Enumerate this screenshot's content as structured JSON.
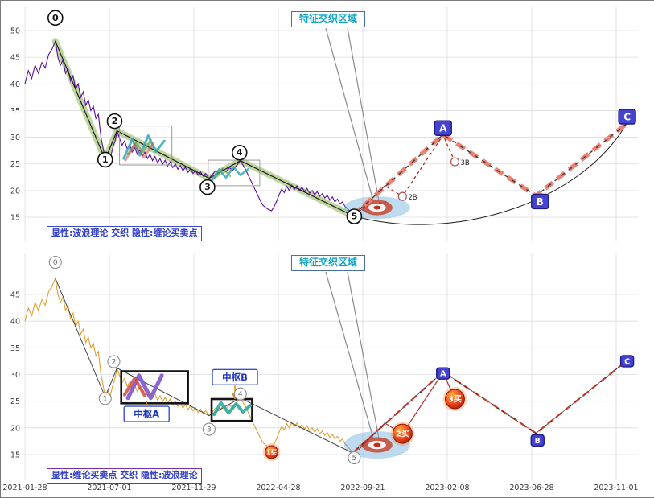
{
  "figure": {
    "background": "#ffffff",
    "border_color": "#7a7a7a",
    "grid_color": "#dcdcdc",
    "axis_text_color": "#3a3a3a"
  },
  "panels": [
    {
      "name": "wave-theory-panel",
      "legend": "显性:波浪理论 交织 隐性:缠论买卖点",
      "legend_border": "#3b4cc8",
      "legend_color": "#3340c8",
      "callout": "特征交织区域",
      "callout_color": "#12a4c4",
      "callout_border": "#4a6fa5",
      "y_ticks": [
        15,
        20,
        25,
        30,
        35,
        40,
        45,
        50
      ],
      "price_color": "#5a0f9e",
      "band_color": "rgba(170,200,128,0.75)",
      "projection_color": "#ec8272"
    },
    {
      "name": "chan-theory-panel",
      "legend": "显性:缠论买卖点 交织 隐性:波浪理论",
      "legend_border": "#7a2ea0",
      "legend_color": "#3340c8",
      "callout": "特征交织区域",
      "callout_color": "#12a4c4",
      "callout_border": "#4a6fa5",
      "y_ticks": [
        15,
        20,
        25,
        30,
        35,
        40,
        45
      ],
      "price_color": "#e0a030",
      "projection_color": "#bf3a2b"
    }
  ],
  "chart_data": {
    "type": "line",
    "x_labels": [
      "2021-01-28",
      "2021-07-01",
      "2021-11-29",
      "2022-04-28",
      "2022-09-21",
      "2023-02-08",
      "2023-06-28",
      "2023-11-01"
    ],
    "ylim_top": [
      11,
      54
    ],
    "ylim_bottom": [
      10.5,
      52.5
    ],
    "grid": true,
    "price": [
      [
        0,
        40
      ],
      [
        0.04,
        42.5
      ],
      [
        0.08,
        41
      ],
      [
        0.12,
        43.5
      ],
      [
        0.16,
        42
      ],
      [
        0.2,
        44
      ],
      [
        0.24,
        43
      ],
      [
        0.28,
        45.5
      ],
      [
        0.32,
        46.5
      ],
      [
        0.36,
        48
      ],
      [
        0.39,
        45
      ],
      [
        0.42,
        43.5
      ],
      [
        0.45,
        44.5
      ],
      [
        0.48,
        42
      ],
      [
        0.51,
        42.8
      ],
      [
        0.54,
        40.5
      ],
      [
        0.57,
        41.5
      ],
      [
        0.6,
        39
      ],
      [
        0.63,
        40
      ],
      [
        0.66,
        37.5
      ],
      [
        0.69,
        38.5
      ],
      [
        0.72,
        36
      ],
      [
        0.75,
        37
      ],
      [
        0.78,
        35
      ],
      [
        0.81,
        35.8
      ],
      [
        0.84,
        33.5
      ],
      [
        0.87,
        34.3
      ],
      [
        0.9,
        30
      ],
      [
        0.93,
        27.5
      ],
      [
        0.95,
        25.8
      ],
      [
        0.98,
        27
      ],
      [
        1.01,
        26
      ],
      [
        1.04,
        28
      ],
      [
        1.07,
        29.5
      ],
      [
        1.09,
        31.2
      ],
      [
        1.12,
        29.8
      ],
      [
        1.15,
        28.5
      ],
      [
        1.18,
        29.3
      ],
      [
        1.21,
        27.8
      ],
      [
        1.24,
        28.6
      ],
      [
        1.27,
        27.2
      ],
      [
        1.3,
        28
      ],
      [
        1.33,
        26.8
      ],
      [
        1.36,
        27.6
      ],
      [
        1.39,
        26.4
      ],
      [
        1.42,
        27.2
      ],
      [
        1.45,
        26
      ],
      [
        1.48,
        26.8
      ],
      [
        1.51,
        25.6
      ],
      [
        1.54,
        26.4
      ],
      [
        1.57,
        25.2
      ],
      [
        1.6,
        26
      ],
      [
        1.63,
        24.9
      ],
      [
        1.66,
        25.7
      ],
      [
        1.69,
        24.6
      ],
      [
        1.72,
        25.4
      ],
      [
        1.75,
        24.3
      ],
      [
        1.78,
        25
      ],
      [
        1.81,
        24
      ],
      [
        1.84,
        24.7
      ],
      [
        1.87,
        23.7
      ],
      [
        1.9,
        24.4
      ],
      [
        1.93,
        23.4
      ],
      [
        1.96,
        24.1
      ],
      [
        1.99,
        23.2
      ],
      [
        2.02,
        23.8
      ],
      [
        2.05,
        22.9
      ],
      [
        2.08,
        23.5
      ],
      [
        2.11,
        22.7
      ],
      [
        2.14,
        23.2
      ],
      [
        2.18,
        22.3
      ],
      [
        2.22,
        23
      ],
      [
        2.26,
        23.8
      ],
      [
        2.3,
        23.2
      ],
      [
        2.34,
        24
      ],
      [
        2.38,
        23.5
      ],
      [
        2.42,
        24.3
      ],
      [
        2.46,
        23.8
      ],
      [
        2.5,
        24.6
      ],
      [
        2.55,
        25.6
      ],
      [
        2.58,
        24.8
      ],
      [
        2.61,
        24
      ],
      [
        2.64,
        23
      ],
      [
        2.67,
        22
      ],
      [
        2.7,
        21
      ],
      [
        2.73,
        20
      ],
      [
        2.76,
        19
      ],
      [
        2.79,
        18
      ],
      [
        2.82,
        17.2
      ],
      [
        2.85,
        16.8
      ],
      [
        2.88,
        16.5
      ],
      [
        2.92,
        16.2
      ],
      [
        2.95,
        17
      ],
      [
        2.98,
        18
      ],
      [
        3.01,
        19.2
      ],
      [
        3.04,
        20.3
      ],
      [
        3.07,
        19.6
      ],
      [
        3.1,
        20.8
      ],
      [
        3.13,
        20
      ],
      [
        3.16,
        21
      ],
      [
        3.19,
        20.2
      ],
      [
        3.22,
        20.9
      ],
      [
        3.25,
        20
      ],
      [
        3.28,
        20.6
      ],
      [
        3.31,
        19.8
      ],
      [
        3.34,
        20.4
      ],
      [
        3.37,
        19.5
      ],
      [
        3.4,
        20
      ],
      [
        3.43,
        19.2
      ],
      [
        3.46,
        19.8
      ],
      [
        3.49,
        18.9
      ],
      [
        3.52,
        19.4
      ],
      [
        3.55,
        18.6
      ],
      [
        3.58,
        19.1
      ],
      [
        3.61,
        18.2
      ],
      [
        3.64,
        18.8
      ],
      [
        3.67,
        17.9
      ],
      [
        3.7,
        18.4
      ],
      [
        3.73,
        17.5
      ],
      [
        3.76,
        17.9
      ],
      [
        3.79,
        17
      ],
      [
        3.82,
        16.6
      ],
      [
        3.85,
        15.9
      ],
      [
        3.88,
        15.3
      ],
      [
        3.92,
        16
      ],
      [
        3.96,
        16.8
      ],
      [
        4,
        16.3
      ],
      [
        4.04,
        17.2
      ],
      [
        4.08,
        16.7
      ],
      [
        4.12,
        17.5
      ],
      [
        4.16,
        17
      ],
      [
        4.2,
        17.8
      ],
      [
        4.24,
        17.3
      ],
      [
        4.28,
        18
      ]
    ],
    "wave_points": [
      {
        "label": "0",
        "x": 0.36,
        "value": 48.0
      },
      {
        "label": "1",
        "x": 0.95,
        "value": 25.8
      },
      {
        "label": "2",
        "x": 1.09,
        "value": 31.2
      },
      {
        "label": "3",
        "x": 2.18,
        "value": 22.3
      },
      {
        "label": "4",
        "x": 2.55,
        "value": 25.6
      },
      {
        "label": "5",
        "x": 3.88,
        "value": 15.3
      }
    ],
    "abc_projection": [
      {
        "label": "A",
        "x": 4.95,
        "value": 30.5
      },
      {
        "label": "B",
        "x": 6.05,
        "value": 19.0
      },
      {
        "label": "C",
        "x": 7.12,
        "value": 32.5
      }
    ],
    "micro_path": [
      [
        3.95,
        15.9
      ],
      [
        4.26,
        20.9
      ],
      [
        4.47,
        18.9
      ],
      [
        4.95,
        30.4
      ],
      [
        5.09,
        25.4
      ]
    ],
    "chan_points_top": [
      {
        "label": "2B",
        "x": 4.47,
        "value": 18.9
      },
      {
        "label": "3B",
        "x": 5.09,
        "value": 25.4
      }
    ],
    "buy_points_bottom": [
      {
        "label": "1买",
        "x": 2.92,
        "value": 16.2
      },
      {
        "label": "2买",
        "x": 4.47,
        "value": 18.9
      },
      {
        "label": "3买",
        "x": 5.09,
        "value": 25.4
      }
    ],
    "gray_boxes_top": [
      {
        "x0": 1.12,
        "x1": 1.74,
        "v0": 24.8,
        "v1": 32.1
      },
      {
        "x0": 2.17,
        "x1": 2.78,
        "v0": 20.9,
        "v1": 25.7
      }
    ],
    "pivot_boxes_bottom": [
      {
        "label": "中枢A",
        "x0": 1.14,
        "x1": 1.93,
        "v0": 24.6,
        "v1": 30.6
      },
      {
        "label": "中枢B",
        "x0": 2.21,
        "x1": 2.69,
        "v0": 21.3,
        "v1": 25.4
      }
    ],
    "pivot_labels_bottom": [
      {
        "label": "中枢A",
        "x": 1.44,
        "value": 22.6
      },
      {
        "label": "中枢B",
        "x": 2.486,
        "value": 29.5
      }
    ],
    "target_ellipse": {
      "x": 4.17,
      "value": 16.8
    },
    "sketches": {
      "top": [
        {
          "color": "rgba(48,168,184,0.85)",
          "width": 3,
          "points": [
            [
              1.17,
              26.0
            ],
            [
              1.27,
              29.6
            ],
            [
              1.36,
              26.6
            ],
            [
              1.46,
              30.3
            ],
            [
              1.55,
              27.3
            ],
            [
              1.65,
              29.3
            ]
          ]
        },
        {
          "color": "rgba(106,168,79,0.8)",
          "width": 2.5,
          "points": [
            [
              1.22,
              26.8
            ],
            [
              1.31,
              29.0
            ],
            [
              1.4,
              27.2
            ],
            [
              1.49,
              29.5
            ]
          ]
        },
        {
          "color": "rgba(204,80,80,0.55)",
          "width": 3,
          "points": [
            [
              1.19,
              25.7
            ],
            [
              1.3,
              28.6
            ],
            [
              1.41,
              26.2
            ],
            [
              1.52,
              28.9
            ]
          ]
        },
        {
          "color": "rgba(48,168,184,0.85)",
          "width": 2.5,
          "points": [
            [
              2.21,
              21.8
            ],
            [
              2.3,
              24.0
            ],
            [
              2.38,
              22.4
            ],
            [
              2.47,
              24.4
            ],
            [
              2.55,
              22.9
            ],
            [
              2.64,
              24.0
            ]
          ]
        },
        {
          "color": "rgba(106,168,79,0.75)",
          "width": 2,
          "points": [
            [
              2.25,
              22.3
            ],
            [
              2.34,
              24.2
            ],
            [
              2.43,
              22.7
            ]
          ]
        }
      ],
      "bottom": [
        {
          "color": "rgba(126,87,208,0.9)",
          "width": 5,
          "points": [
            [
              1.22,
              25.6
            ],
            [
              1.35,
              29.8
            ],
            [
              1.49,
              25.6
            ],
            [
              1.62,
              29.8
            ]
          ]
        },
        {
          "color": "rgba(207,79,63,0.85)",
          "width": 4,
          "points": [
            [
              1.18,
              26.2
            ],
            [
              1.3,
              29.3
            ],
            [
              1.42,
              26.0
            ]
          ]
        },
        {
          "color": "rgba(47,168,154,0.9)",
          "width": 4,
          "points": [
            [
              2.24,
              22.5
            ],
            [
              2.32,
              24.7
            ],
            [
              2.41,
              22.8
            ],
            [
              2.5,
              24.5
            ],
            [
              2.58,
              23.0
            ],
            [
              2.67,
              24.2
            ]
          ]
        }
      ]
    }
  }
}
